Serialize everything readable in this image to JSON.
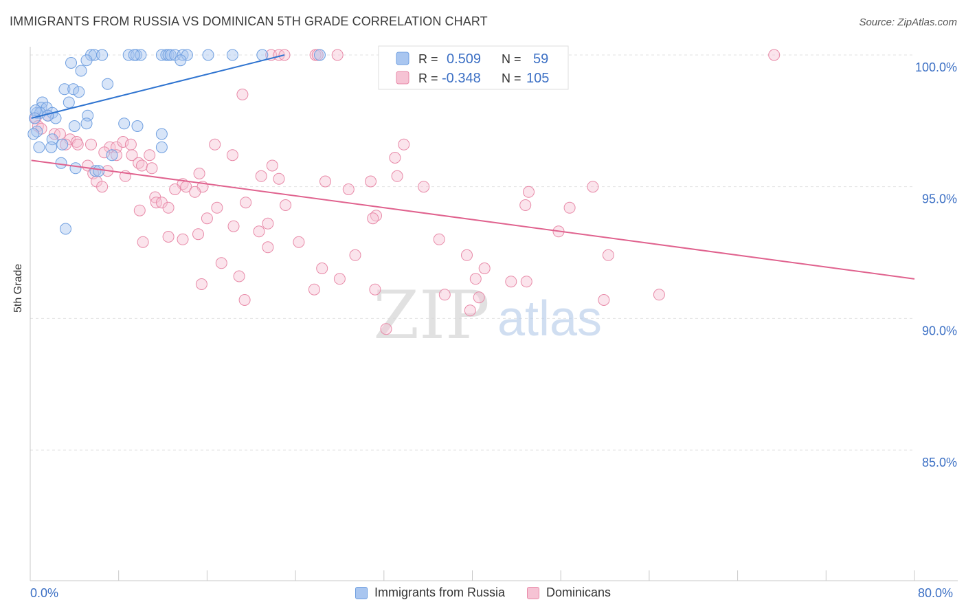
{
  "title": "IMMIGRANTS FROM RUSSIA VS DOMINICAN 5TH GRADE CORRELATION CHART",
  "source": "Source: ZipAtlas.com",
  "watermark": {
    "zip": "ZIP",
    "atlas": "atlas"
  },
  "chart_data": {
    "type": "scatter",
    "ylabel": "5th Grade",
    "xlim": [
      0,
      80
    ],
    "ylim": [
      80.8,
      100.8
    ],
    "x_tick_labels": [
      "0.0%",
      "80.0%"
    ],
    "y_ticks": [
      {
        "value": 100,
        "label": "100.0%"
      },
      {
        "value": 95,
        "label": "95.0%"
      },
      {
        "value": 90,
        "label": "90.0%"
      },
      {
        "value": 85,
        "label": "85.0%"
      }
    ],
    "grid": "horizontal dashed",
    "legend_position": "top-center",
    "series": [
      {
        "name": "Immigrants from Russia",
        "color": "#6f9fe0",
        "fill": "#a9c6f0",
        "line_color": "#2f74d0",
        "R": "0.509",
        "N": "59",
        "trend": {
          "x0": 0.1,
          "y0": 97.6,
          "x1": 23,
          "y1": 100.0
        },
        "points": [
          [
            5.5,
            100.0
          ],
          [
            5.8,
            100.0
          ],
          [
            6.5,
            100.0
          ],
          [
            8.9,
            100.0
          ],
          [
            9.6,
            100.0
          ],
          [
            10.0,
            100.0
          ],
          [
            11.9,
            100.0
          ],
          [
            12.3,
            100.0
          ],
          [
            12.5,
            100.0
          ],
          [
            12.7,
            100.0
          ],
          [
            13.1,
            100.0
          ],
          [
            13.8,
            100.0
          ],
          [
            14.2,
            100.0
          ],
          [
            16.1,
            100.0
          ],
          [
            18.3,
            100.0
          ],
          [
            21.0,
            100.0
          ],
          [
            26.2,
            100.0
          ],
          [
            9.4,
            100.0
          ],
          [
            5.1,
            99.8
          ],
          [
            13.6,
            99.8
          ],
          [
            3.7,
            99.7
          ],
          [
            4.6,
            99.4
          ],
          [
            7.0,
            98.9
          ],
          [
            3.1,
            98.7
          ],
          [
            3.9,
            98.7
          ],
          [
            4.4,
            98.6
          ],
          [
            1.1,
            98.2
          ],
          [
            3.5,
            98.2
          ],
          [
            1.0,
            98.0
          ],
          [
            1.5,
            98.0
          ],
          [
            0.6,
            97.8
          ],
          [
            0.9,
            97.8
          ],
          [
            0.5,
            97.9
          ],
          [
            2.0,
            97.8
          ],
          [
            2.3,
            97.6
          ],
          [
            5.2,
            97.7
          ],
          [
            1.6,
            97.7
          ],
          [
            0.4,
            97.6
          ],
          [
            5.1,
            97.4
          ],
          [
            4.0,
            97.3
          ],
          [
            8.5,
            97.4
          ],
          [
            9.7,
            97.3
          ],
          [
            0.6,
            97.1
          ],
          [
            0.3,
            97.0
          ],
          [
            11.9,
            97.0
          ],
          [
            2.0,
            96.8
          ],
          [
            2.9,
            96.6
          ],
          [
            1.9,
            96.5
          ],
          [
            0.8,
            96.5
          ],
          [
            11.9,
            96.5
          ],
          [
            7.4,
            96.2
          ],
          [
            2.8,
            95.9
          ],
          [
            4.1,
            95.7
          ],
          [
            5.9,
            95.6
          ],
          [
            6.2,
            95.6
          ],
          [
            3.2,
            93.4
          ]
        ]
      },
      {
        "name": "Dominicans",
        "color": "#e88aa8",
        "fill": "#f6c3d4",
        "line_color": "#e0628e",
        "R": "-0.348",
        "N": "105",
        "trend": {
          "x0": 0.1,
          "y0": 96.0,
          "x1": 80,
          "y1": 91.5
        },
        "points": [
          [
            21.8,
            100.0
          ],
          [
            22.5,
            100.0
          ],
          [
            23.0,
            100.0
          ],
          [
            25.8,
            100.0
          ],
          [
            26.0,
            100.0
          ],
          [
            27.8,
            100.0
          ],
          [
            32.4,
            100.0
          ],
          [
            67.3,
            100.0
          ],
          [
            19.2,
            98.5
          ],
          [
            0.5,
            97.6
          ],
          [
            1.6,
            97.7
          ],
          [
            0.7,
            97.3
          ],
          [
            1.0,
            97.2
          ],
          [
            2.2,
            97.0
          ],
          [
            2.7,
            97.0
          ],
          [
            3.6,
            96.8
          ],
          [
            4.2,
            96.7
          ],
          [
            3.2,
            96.6
          ],
          [
            4.3,
            96.6
          ],
          [
            5.5,
            96.6
          ],
          [
            7.2,
            96.5
          ],
          [
            7.8,
            96.5
          ],
          [
            8.4,
            96.7
          ],
          [
            9.1,
            96.6
          ],
          [
            6.7,
            96.3
          ],
          [
            7.8,
            96.2
          ],
          [
            9.2,
            96.2
          ],
          [
            10.8,
            96.2
          ],
          [
            16.7,
            96.6
          ],
          [
            18.3,
            96.2
          ],
          [
            33.8,
            96.6
          ],
          [
            21.9,
            95.8
          ],
          [
            33.0,
            96.1
          ],
          [
            33.2,
            95.4
          ],
          [
            5.2,
            95.8
          ],
          [
            5.7,
            95.5
          ],
          [
            7.0,
            95.6
          ],
          [
            9.8,
            95.9
          ],
          [
            10.1,
            95.8
          ],
          [
            11.0,
            95.7
          ],
          [
            15.3,
            95.5
          ],
          [
            8.6,
            95.4
          ],
          [
            20.9,
            95.4
          ],
          [
            22.5,
            95.3
          ],
          [
            26.7,
            95.2
          ],
          [
            28.8,
            94.9
          ],
          [
            30.8,
            95.2
          ],
          [
            35.6,
            95.0
          ],
          [
            50.9,
            95.0
          ],
          [
            13.8,
            95.1
          ],
          [
            14.1,
            95.0
          ],
          [
            15.6,
            95.0
          ],
          [
            6.0,
            95.2
          ],
          [
            6.5,
            95.0
          ],
          [
            13.1,
            94.9
          ],
          [
            14.9,
            94.8
          ],
          [
            11.3,
            94.6
          ],
          [
            11.4,
            94.4
          ],
          [
            11.9,
            94.4
          ],
          [
            12.5,
            94.2
          ],
          [
            16.9,
            94.2
          ],
          [
            19.5,
            94.4
          ],
          [
            23.1,
            94.3
          ],
          [
            9.9,
            94.1
          ],
          [
            44.8,
            94.3
          ],
          [
            48.8,
            94.2
          ],
          [
            45.1,
            94.8
          ],
          [
            16.0,
            93.8
          ],
          [
            18.4,
            93.5
          ],
          [
            20.7,
            93.3
          ],
          [
            21.5,
            93.6
          ],
          [
            31.3,
            93.9
          ],
          [
            31.0,
            93.8
          ],
          [
            37.0,
            93.0
          ],
          [
            47.8,
            93.3
          ],
          [
            10.2,
            92.9
          ],
          [
            12.5,
            93.1
          ],
          [
            13.8,
            93.0
          ],
          [
            15.2,
            93.2
          ],
          [
            21.5,
            92.7
          ],
          [
            24.3,
            92.9
          ],
          [
            29.4,
            92.4
          ],
          [
            39.5,
            92.4
          ],
          [
            52.3,
            92.4
          ],
          [
            17.3,
            92.1
          ],
          [
            26.4,
            91.9
          ],
          [
            41.1,
            91.9
          ],
          [
            18.9,
            91.6
          ],
          [
            28.0,
            91.5
          ],
          [
            43.5,
            91.4
          ],
          [
            44.9,
            91.4
          ],
          [
            15.5,
            91.3
          ],
          [
            25.7,
            91.1
          ],
          [
            31.2,
            91.1
          ],
          [
            37.5,
            90.9
          ],
          [
            40.6,
            90.8
          ],
          [
            56.9,
            90.9
          ],
          [
            19.4,
            90.7
          ],
          [
            51.9,
            90.7
          ],
          [
            39.8,
            90.3
          ],
          [
            32.2,
            89.6
          ],
          [
            40.3,
            91.5
          ]
        ]
      }
    ]
  }
}
